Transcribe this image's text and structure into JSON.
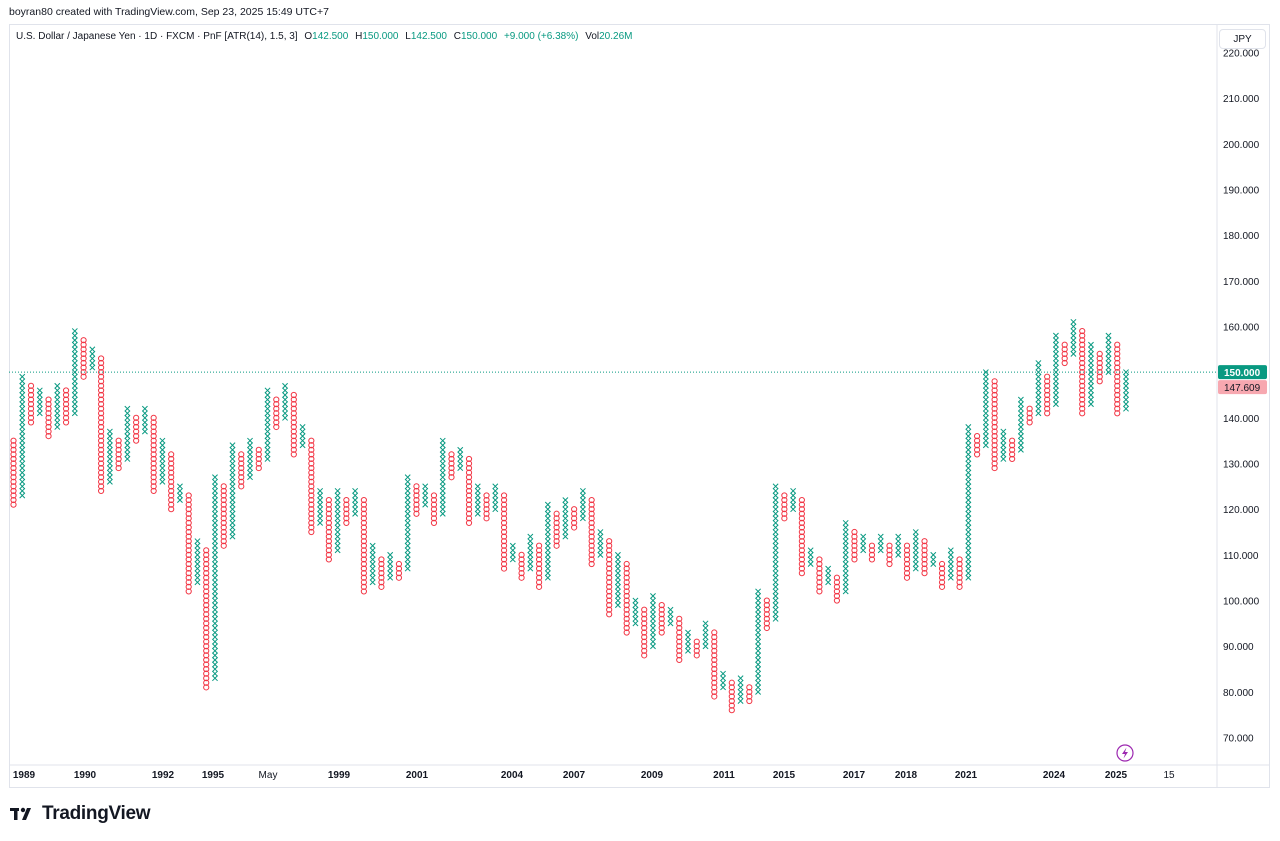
{
  "caption": "boyran80 created with TradingView.com, Sep 23, 2025 15:49 UTC+7",
  "legend": {
    "symbol": "U.S. Dollar / Japanese Yen · 1D · FXCM · PnF [ATR(14), 1.5, 3]",
    "o_label": "O",
    "o_value": "142.500",
    "h_label": "H",
    "h_value": "150.000",
    "l_label": "L",
    "l_value": "142.500",
    "c_label": "C",
    "c_value": "150.000",
    "change": "+9.000 (+6.38%)",
    "vol_label": "Vol",
    "vol_value": "20.26M"
  },
  "currency_button": "JPY",
  "brand": "TradingView",
  "colors": {
    "up": "#089981",
    "down": "#f23645",
    "grid": "#e0e3eb",
    "price_tag": "#089981",
    "last_tag": "#f7a8b0"
  },
  "chart_data": {
    "type": "point-and-figure",
    "ylim": [
      64,
      226
    ],
    "y_ticks": [
      "70.000",
      "80.000",
      "90.000",
      "100.000",
      "110.000",
      "120.000",
      "130.000",
      "140.000",
      "150.000",
      "160.000",
      "170.000",
      "180.000",
      "190.000",
      "200.000",
      "210.000",
      "220.000"
    ],
    "x_ticks": [
      "1989",
      "1990",
      "1992",
      "1995",
      "May",
      "1999",
      "2001",
      "2004",
      "2007",
      "2009",
      "2011",
      "2015",
      "2017",
      "2018",
      "2021",
      "2024",
      "2025",
      "15"
    ],
    "price_label": "150.000",
    "last_label": "147.609",
    "current_price": 150,
    "columns": [
      {
        "d": "o",
        "lo": 121,
        "hi": 135
      },
      {
        "d": "x",
        "lo": 123,
        "hi": 149
      },
      {
        "d": "o",
        "lo": 139,
        "hi": 147
      },
      {
        "d": "x",
        "lo": 141,
        "hi": 146
      },
      {
        "d": "o",
        "lo": 136,
        "hi": 144
      },
      {
        "d": "x",
        "lo": 138,
        "hi": 147
      },
      {
        "d": "o",
        "lo": 139,
        "hi": 146
      },
      {
        "d": "x",
        "lo": 141,
        "hi": 159
      },
      {
        "d": "o",
        "lo": 149,
        "hi": 157
      },
      {
        "d": "x",
        "lo": 151,
        "hi": 155
      },
      {
        "d": "o",
        "lo": 124,
        "hi": 153
      },
      {
        "d": "x",
        "lo": 126,
        "hi": 137
      },
      {
        "d": "o",
        "lo": 129,
        "hi": 135
      },
      {
        "d": "x",
        "lo": 131,
        "hi": 142
      },
      {
        "d": "o",
        "lo": 135,
        "hi": 140
      },
      {
        "d": "x",
        "lo": 137,
        "hi": 142
      },
      {
        "d": "o",
        "lo": 124,
        "hi": 140
      },
      {
        "d": "x",
        "lo": 126,
        "hi": 135
      },
      {
        "d": "o",
        "lo": 120,
        "hi": 132
      },
      {
        "d": "x",
        "lo": 122,
        "hi": 125
      },
      {
        "d": "o",
        "lo": 102,
        "hi": 123
      },
      {
        "d": "x",
        "lo": 104,
        "hi": 113
      },
      {
        "d": "o",
        "lo": 81,
        "hi": 111
      },
      {
        "d": "x",
        "lo": 83,
        "hi": 127
      },
      {
        "d": "o",
        "lo": 112,
        "hi": 125
      },
      {
        "d": "x",
        "lo": 114,
        "hi": 134
      },
      {
        "d": "o",
        "lo": 125,
        "hi": 132
      },
      {
        "d": "x",
        "lo": 127,
        "hi": 135
      },
      {
        "d": "o",
        "lo": 129,
        "hi": 133
      },
      {
        "d": "x",
        "lo": 131,
        "hi": 146
      },
      {
        "d": "o",
        "lo": 138,
        "hi": 144
      },
      {
        "d": "x",
        "lo": 140,
        "hi": 147
      },
      {
        "d": "o",
        "lo": 132,
        "hi": 145
      },
      {
        "d": "x",
        "lo": 134,
        "hi": 138
      },
      {
        "d": "o",
        "lo": 115,
        "hi": 135
      },
      {
        "d": "x",
        "lo": 117,
        "hi": 124
      },
      {
        "d": "o",
        "lo": 109,
        "hi": 122
      },
      {
        "d": "x",
        "lo": 111,
        "hi": 124
      },
      {
        "d": "o",
        "lo": 117,
        "hi": 122
      },
      {
        "d": "x",
        "lo": 119,
        "hi": 124
      },
      {
        "d": "o",
        "lo": 102,
        "hi": 122
      },
      {
        "d": "x",
        "lo": 104,
        "hi": 112
      },
      {
        "d": "o",
        "lo": 103,
        "hi": 109
      },
      {
        "d": "x",
        "lo": 105,
        "hi": 110
      },
      {
        "d": "o",
        "lo": 105,
        "hi": 108
      },
      {
        "d": "x",
        "lo": 107,
        "hi": 127
      },
      {
        "d": "o",
        "lo": 119,
        "hi": 125
      },
      {
        "d": "x",
        "lo": 121,
        "hi": 125
      },
      {
        "d": "o",
        "lo": 117,
        "hi": 123
      },
      {
        "d": "x",
        "lo": 119,
        "hi": 135
      },
      {
        "d": "o",
        "lo": 127,
        "hi": 132
      },
      {
        "d": "x",
        "lo": 129,
        "hi": 133
      },
      {
        "d": "o",
        "lo": 117,
        "hi": 131
      },
      {
        "d": "x",
        "lo": 119,
        "hi": 125
      },
      {
        "d": "o",
        "lo": 118,
        "hi": 123
      },
      {
        "d": "x",
        "lo": 120,
        "hi": 125
      },
      {
        "d": "o",
        "lo": 107,
        "hi": 123
      },
      {
        "d": "x",
        "lo": 109,
        "hi": 112
      },
      {
        "d": "o",
        "lo": 105,
        "hi": 110
      },
      {
        "d": "x",
        "lo": 107,
        "hi": 114
      },
      {
        "d": "o",
        "lo": 103,
        "hi": 112
      },
      {
        "d": "x",
        "lo": 105,
        "hi": 121
      },
      {
        "d": "o",
        "lo": 112,
        "hi": 119
      },
      {
        "d": "x",
        "lo": 114,
        "hi": 122
      },
      {
        "d": "o",
        "lo": 116,
        "hi": 120
      },
      {
        "d": "x",
        "lo": 118,
        "hi": 124
      },
      {
        "d": "o",
        "lo": 108,
        "hi": 122
      },
      {
        "d": "x",
        "lo": 110,
        "hi": 115
      },
      {
        "d": "o",
        "lo": 97,
        "hi": 113
      },
      {
        "d": "x",
        "lo": 99,
        "hi": 110
      },
      {
        "d": "o",
        "lo": 93,
        "hi": 108
      },
      {
        "d": "x",
        "lo": 95,
        "hi": 100
      },
      {
        "d": "o",
        "lo": 88,
        "hi": 98
      },
      {
        "d": "x",
        "lo": 90,
        "hi": 101
      },
      {
        "d": "o",
        "lo": 93,
        "hi": 99
      },
      {
        "d": "x",
        "lo": 95,
        "hi": 98
      },
      {
        "d": "o",
        "lo": 87,
        "hi": 96
      },
      {
        "d": "x",
        "lo": 89,
        "hi": 93
      },
      {
        "d": "o",
        "lo": 88,
        "hi": 91
      },
      {
        "d": "x",
        "lo": 90,
        "hi": 95
      },
      {
        "d": "o",
        "lo": 79,
        "hi": 93
      },
      {
        "d": "x",
        "lo": 81,
        "hi": 84
      },
      {
        "d": "o",
        "lo": 76,
        "hi": 82
      },
      {
        "d": "x",
        "lo": 78,
        "hi": 83
      },
      {
        "d": "o",
        "lo": 78,
        "hi": 81
      },
      {
        "d": "x",
        "lo": 80,
        "hi": 102
      },
      {
        "d": "o",
        "lo": 94,
        "hi": 100
      },
      {
        "d": "x",
        "lo": 96,
        "hi": 125
      },
      {
        "d": "o",
        "lo": 118,
        "hi": 123
      },
      {
        "d": "x",
        "lo": 120,
        "hi": 124
      },
      {
        "d": "o",
        "lo": 106,
        "hi": 122
      },
      {
        "d": "x",
        "lo": 108,
        "hi": 111
      },
      {
        "d": "o",
        "lo": 102,
        "hi": 109
      },
      {
        "d": "x",
        "lo": 104,
        "hi": 107
      },
      {
        "d": "o",
        "lo": 100,
        "hi": 105
      },
      {
        "d": "x",
        "lo": 102,
        "hi": 117
      },
      {
        "d": "o",
        "lo": 109,
        "hi": 115
      },
      {
        "d": "x",
        "lo": 111,
        "hi": 114
      },
      {
        "d": "o",
        "lo": 109,
        "hi": 112
      },
      {
        "d": "x",
        "lo": 111,
        "hi": 114
      },
      {
        "d": "o",
        "lo": 108,
        "hi": 112
      },
      {
        "d": "x",
        "lo": 110,
        "hi": 114
      },
      {
        "d": "o",
        "lo": 105,
        "hi": 112
      },
      {
        "d": "x",
        "lo": 107,
        "hi": 115
      },
      {
        "d": "o",
        "lo": 106,
        "hi": 113
      },
      {
        "d": "x",
        "lo": 108,
        "hi": 110
      },
      {
        "d": "o",
        "lo": 103,
        "hi": 108
      },
      {
        "d": "x",
        "lo": 105,
        "hi": 111
      },
      {
        "d": "o",
        "lo": 103,
        "hi": 109
      },
      {
        "d": "x",
        "lo": 105,
        "hi": 138
      },
      {
        "d": "o",
        "lo": 132,
        "hi": 136
      },
      {
        "d": "x",
        "lo": 134,
        "hi": 150
      },
      {
        "d": "o",
        "lo": 129,
        "hi": 148
      },
      {
        "d": "x",
        "lo": 131,
        "hi": 137
      },
      {
        "d": "o",
        "lo": 131,
        "hi": 135
      },
      {
        "d": "x",
        "lo": 133,
        "hi": 144
      },
      {
        "d": "o",
        "lo": 139,
        "hi": 142
      },
      {
        "d": "x",
        "lo": 141,
        "hi": 152
      },
      {
        "d": "o",
        "lo": 141,
        "hi": 149
      },
      {
        "d": "x",
        "lo": 143,
        "hi": 158
      },
      {
        "d": "o",
        "lo": 152,
        "hi": 156
      },
      {
        "d": "x",
        "lo": 154,
        "hi": 161
      },
      {
        "d": "o",
        "lo": 141,
        "hi": 159
      },
      {
        "d": "x",
        "lo": 143,
        "hi": 156
      },
      {
        "d": "o",
        "lo": 148,
        "hi": 154
      },
      {
        "d": "x",
        "lo": 150,
        "hi": 158
      },
      {
        "d": "o",
        "lo": 141,
        "hi": 156
      },
      {
        "d": "x",
        "lo": 142,
        "hi": 150
      }
    ]
  }
}
